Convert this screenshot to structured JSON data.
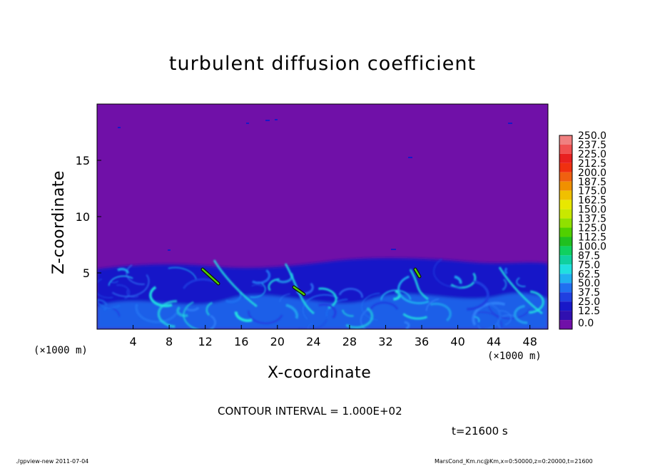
{
  "chart_data": {
    "type": "heatmap",
    "title": "turbulent diffusion coefficient",
    "xlabel": "X-coordinate",
    "ylabel": "Z-coordinate",
    "x_unit_label": "(×1000 m)",
    "xlim": [
      0,
      50
    ],
    "ylim": [
      0,
      20
    ],
    "x_ticks": [
      "4",
      "8",
      "12",
      "16",
      "20",
      "24",
      "28",
      "32",
      "36",
      "40",
      "44",
      "48"
    ],
    "y_ticks": [
      "5",
      "10",
      "15"
    ],
    "x_tick_values": [
      4,
      8,
      12,
      16,
      20,
      24,
      28,
      32,
      36,
      40,
      44,
      48
    ],
    "y_tick_values": [
      5,
      10,
      15
    ],
    "colorbar_labels": [
      "250.0",
      "237.5",
      "225.0",
      "212.5",
      "200.0",
      "187.5",
      "175.0",
      "162.5",
      "150.0",
      "137.5",
      "125.0",
      "112.5",
      "100.0",
      "87.5",
      "75.0",
      "62.5",
      "50.0",
      "37.5",
      "25.0",
      "12.5",
      "0.0"
    ],
    "colorbar_colors": [
      "#f08080",
      "#f05050",
      "#e82020",
      "#f03010",
      "#f06010",
      "#f09000",
      "#f0c000",
      "#e8e800",
      "#c8e800",
      "#90e000",
      "#50d000",
      "#20c020",
      "#10d060",
      "#10d0a0",
      "#20e0e0",
      "#20b0f0",
      "#2070f0",
      "#2040e0",
      "#1818c8",
      "#3010b0",
      "#7010a8"
    ],
    "background_value_color": "#7010a8",
    "grid": false
  },
  "annotations": {
    "contour_interval": "CONTOUR INTERVAL = 1.000E+02",
    "time": "t=21600  s",
    "footer_left": "./gpview-new   2011-07-04",
    "footer_right": "MarsCond_Km.nc@Km,x=0:50000,z=0:20000,t=21600"
  }
}
